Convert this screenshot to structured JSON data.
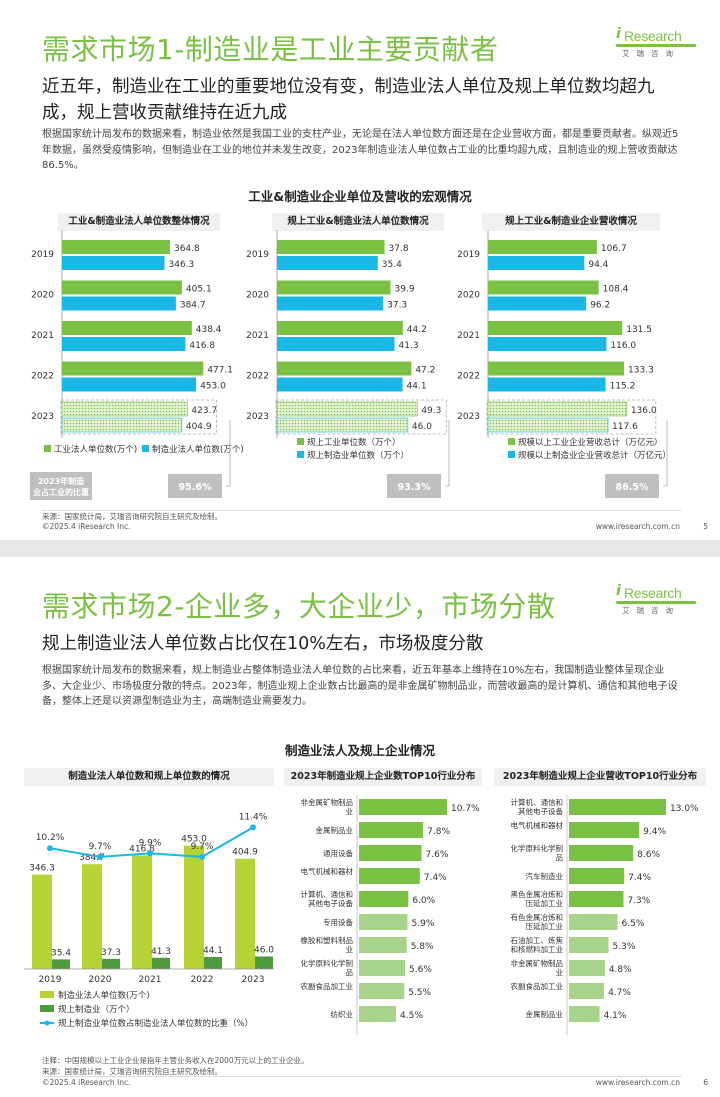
{
  "logo": {
    "brand_i": "i",
    "brand_rest": "Research",
    "cn": "艾瑞咨询"
  },
  "page1": {
    "title": "需求市场1-制造业是工业主要贡献者",
    "subtitle": "近五年，制造业在工业的重要地位没有变，制造业法人单位及规上单位数均超九成，规上营收贡献维持在近九成",
    "paragraph": "根据国家统计局发布的数据来看，制造业依然是我国工业的支柱产业，无论是在法人单位数方面还是在企业营收方面，都是重要贡献者。纵观近5年数据，虽然受疫情影响，但制造业在工业的地位并未发生改变，2023年制造业法人单位数占工业的比重均超九成，且制造业的规上营收贡献达86.5%。",
    "section_title": "工业&制造业企业单位及营收的宏观情况",
    "footer_source": "来源：国家统计局，艾瑞咨询研究院自主研究及绘制。",
    "footer_copy": "©2025.4 iResearch Inc.",
    "footer_url": "www.iresearch.com.cn",
    "page_num": "5",
    "share_label": "2023年制造业占工业的比重",
    "charts": [
      {
        "head": "工业&制造业法人单位数整体情况",
        "years": [
          "2019",
          "2020",
          "2021",
          "2022",
          "2023"
        ],
        "a": [
          364.8,
          405.1,
          438.4,
          477.1,
          423.7
        ],
        "b": [
          346.3,
          384.7,
          416.8,
          453.0,
          404.9
        ],
        "a_labels": [
          "364.8",
          "405.1",
          "438.4",
          "477.1",
          "423.7"
        ],
        "b_labels": [
          "346.3",
          "384.7",
          "416.8",
          "453.0",
          "404.9"
        ],
        "max": 500,
        "legend_a": "工业法人单位数(万个)",
        "legend_b": "制造业法人单位数(万个)",
        "share": "95.6%"
      },
      {
        "head": "规上工业&制造业法人单位数情况",
        "years": [
          "2019",
          "2020",
          "2021",
          "2022",
          "2023"
        ],
        "a": [
          37.8,
          39.9,
          44.2,
          47.2,
          49.3
        ],
        "b": [
          35.4,
          37.3,
          41.3,
          44.1,
          46.0
        ],
        "a_labels": [
          "37.8",
          "39.9",
          "44.2",
          "47.2",
          "49.3"
        ],
        "b_labels": [
          "35.4",
          "37.3",
          "41.3",
          "44.1",
          "46.0"
        ],
        "max": 52,
        "legend_a": "规上工业单位数（万个）",
        "legend_b": "规上制造业单位数（万个）",
        "share": "93.3%"
      },
      {
        "head": "规上工业&制造业企业营收情况",
        "years": [
          "2019",
          "2020",
          "2021",
          "2022",
          "2023"
        ],
        "a": [
          106.7,
          108.4,
          131.5,
          133.3,
          136.0
        ],
        "b": [
          94.4,
          96.2,
          116.0,
          115.2,
          117.6
        ],
        "a_labels": [
          "106.7",
          "108.4",
          "131.5",
          "133.3",
          "136.0"
        ],
        "b_labels": [
          "94.4",
          "96.2",
          "116.0",
          "115.2",
          "117.6"
        ],
        "max": 145,
        "legend_a": "规模以上工业企业营收总计（万亿元）",
        "legend_b": "规模以上制造业企业营收总计（万亿元）",
        "share": "86.5%"
      }
    ]
  },
  "page2": {
    "title": "需求市场2-企业多，大企业少，市场分散",
    "subtitle": "规上制造业法人单位数占比仅在10%左右，市场极度分散",
    "paragraph": "根据国家统计局发布的数据来看，规上制造业占整体制造业法人单位数的占比来看，近五年基本上维持在10%左右，我国制造业整体呈现企业多、大企业少、市场极度分散的特点。2023年，制造业规上企业数占比最高的是非金属矿物制品业，而营收最高的是计算机、通信和其他电子设备，整体上还是以资源型制造业为主，高端制造业需要发力。",
    "section_title": "制造业法人及规上企业情况",
    "footer_note": "注释：中国规模以上工业企业是指年主营业务收入在2000万元以上的工业企业。",
    "footer_source": "来源：国家统计局，艾瑞咨询研究院自主研究及绘制。",
    "footer_copy": "©2025.4 iResearch Inc.",
    "footer_url": "www.iresearch.com.cn",
    "page_num": "6",
    "combo": {
      "head": "制造业法人单位数和规上单位数的情况",
      "years": [
        "2019",
        "2020",
        "2021",
        "2022",
        "2023"
      ],
      "total": [
        346.3,
        384.7,
        416.8,
        453.0,
        404.9
      ],
      "total_labels": [
        "346.3",
        "384.7",
        "416.8",
        "453.0",
        "404.9"
      ],
      "above": [
        35.4,
        37.3,
        41.3,
        44.1,
        46.0
      ],
      "above_labels": [
        "35.4",
        "37.3",
        "41.3",
        "44.1",
        "46.0"
      ],
      "ratio": [
        10.2,
        9.7,
        9.9,
        9.7,
        11.4
      ],
      "ratio_labels": [
        "10.2%",
        "9.7%",
        "9.9%",
        "9.7%",
        "11.4%"
      ],
      "legend_total": "制造业法人单位数(万个)",
      "legend_above": "规上制造业（万个）",
      "legend_ratio": "规上制造业单位数占制造业法人单位数的比重（%）"
    },
    "top_count": {
      "head": "2023年制造业规上企业数TOP10行业分布",
      "items": [
        {
          "name": "非金属矿物制品业",
          "value": 10.7,
          "label": "10.7%"
        },
        {
          "name": "金属制品业",
          "value": 7.8,
          "label": "7.8%"
        },
        {
          "name": "通用设备",
          "value": 7.6,
          "label": "7.6%"
        },
        {
          "name": "电气机械和器材",
          "value": 7.4,
          "label": "7.4%"
        },
        {
          "name": "计算机、通信和其他电子设备",
          "value": 6.0,
          "label": "6.0%"
        },
        {
          "name": "专用设备",
          "value": 5.9,
          "label": "5.9%"
        },
        {
          "name": "橡胶和塑料制品业",
          "value": 5.8,
          "label": "5.8%"
        },
        {
          "name": "化学原料化学制品",
          "value": 5.6,
          "label": "5.6%"
        },
        {
          "name": "农副食品加工业",
          "value": 5.5,
          "label": "5.5%"
        },
        {
          "name": "纺织业",
          "value": 4.5,
          "label": "4.5%"
        }
      ]
    },
    "top_revenue": {
      "head": "2023年制造业规上企业营收TOP10行业分布",
      "items": [
        {
          "name": "计算机、通信和其他电子设备",
          "value": 13.0,
          "label": "13.0%"
        },
        {
          "name": "电气机械和器材",
          "value": 9.4,
          "label": "9.4%"
        },
        {
          "name": "化学原料化学制品",
          "value": 8.6,
          "label": "8.6%"
        },
        {
          "name": "汽车制造业",
          "value": 7.4,
          "label": "7.4%"
        },
        {
          "name": "黑色金属冶炼和压延加工业",
          "value": 7.3,
          "label": "7.3%"
        },
        {
          "name": "有色金属冶炼和压延加工业",
          "value": 6.5,
          "label": "6.5%"
        },
        {
          "name": "石油加工、炼焦和核燃料加工业",
          "value": 5.3,
          "label": "5.3%"
        },
        {
          "name": "非金属矿物制品业",
          "value": 4.8,
          "label": "4.8%"
        },
        {
          "name": "农副食品加工业",
          "value": 4.7,
          "label": "4.7%"
        },
        {
          "name": "金属制品业",
          "value": 4.1,
          "label": "4.1%"
        }
      ]
    }
  },
  "colors": {
    "green": "#7ac143",
    "light_green": "#a8d38a",
    "lime": "#b5d335",
    "dark_green": "#4e9a3e",
    "cyan": "#19b8e6",
    "palegreen": "#c9e5b2"
  }
}
